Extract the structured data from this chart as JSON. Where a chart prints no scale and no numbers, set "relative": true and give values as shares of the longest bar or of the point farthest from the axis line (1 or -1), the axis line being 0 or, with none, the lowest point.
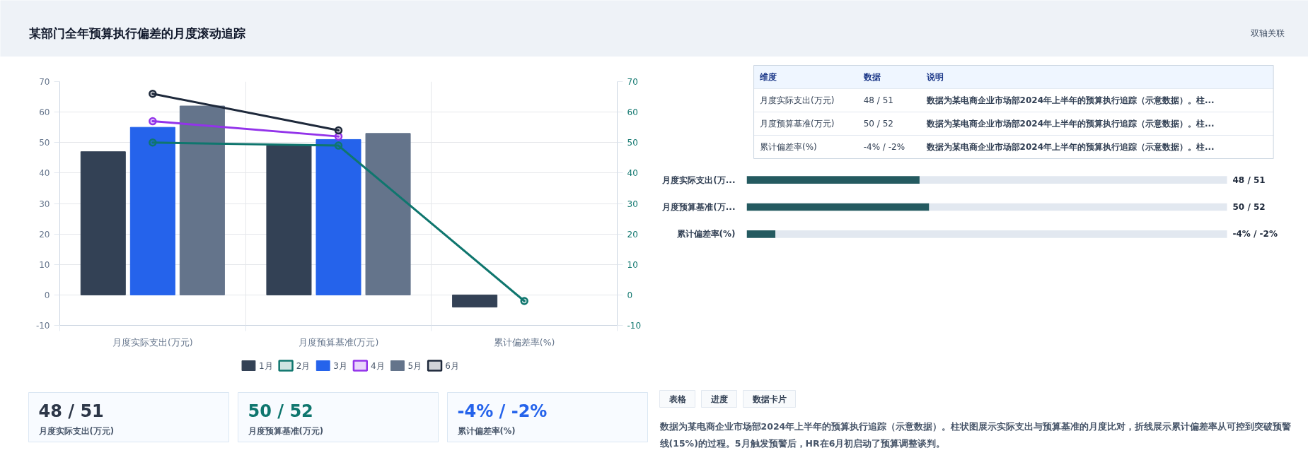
{
  "chart_data": [
    {
      "type": "bar",
      "title": "某部门全年预算执行偏差的月度滚动追踪",
      "annotations": [
        "双轴关联"
      ],
      "categories": [
        "月度实际支出(万元)",
        "月度预算基准(万元)",
        "累计偏差率(%)"
      ],
      "series": [
        {
          "name": "1月",
          "color": "#334155",
          "values": [
            47,
            49,
            -4
          ]
        },
        {
          "name": "2月",
          "type": "line",
          "axis": "y2",
          "color": "#0f766e",
          "values": [
            50,
            49,
            -2
          ]
        },
        {
          "name": "3月",
          "color": "#2563eb",
          "values": [
            55,
            51,
            null
          ]
        },
        {
          "name": "4月",
          "type": "line",
          "axis": "y2",
          "color": "#9333ea",
          "values": [
            57,
            52,
            null
          ]
        },
        {
          "name": "5月",
          "color": "#64748b",
          "values": [
            62,
            53,
            null
          ]
        },
        {
          "name": "6月",
          "type": "line",
          "axis": "y2",
          "color": "#1e293b",
          "values": [
            66,
            54,
            null
          ]
        }
      ],
      "ylim": [
        -10,
        70
      ],
      "yticks": [
        -10,
        0,
        10,
        20,
        30,
        40,
        50,
        60,
        70
      ],
      "y2lim": [
        -10,
        70
      ],
      "y2ticks": [
        -10,
        0,
        10,
        20,
        30,
        40,
        50,
        60,
        70
      ],
      "grid": true,
      "legend": "bottom",
      "marker": "circle",
      "line_style": "solid"
    },
    {
      "type": "other",
      "annotations": [
        "维度",
        "数据",
        "说明",
        "月度实际支出(万元)",
        "48 / 51",
        "数据为某电商企业市场部2024年上半年的预算执行追踪（示意数据）。柱...",
        "月度预算基准(万元)",
        "50 / 52",
        "数据为某电商企业市场部2024年上半年的预算执行追踪（示意数据）。柱...",
        "累计偏差率(%)",
        "-4% / -2%",
        "数据为某电商企业市场部2024年上半年的预算执行追踪（示意数据）。柱..."
      ]
    },
    {
      "type": "bar",
      "orientation": "horizontal",
      "stacked": true,
      "relative": true,
      "categories": [
        "月度实际支出(万...",
        "月度预算基准(万...",
        "累计偏差率(%)"
      ],
      "series": [
        {
          "color": "#245a60",
          "values": [
            0.36,
            0.38,
            0.06
          ]
        },
        {
          "color": "#e2e8f0",
          "values": [
            0.64,
            0.62,
            0.94
          ]
        }
      ],
      "totals": [
        "48 / 51",
        "50 / 52",
        "-4% / -2%"
      ]
    },
    {
      "type": "other",
      "annotations": [
        "48 / 51",
        "月度实际支出(万元)",
        "50 / 52",
        "月度预算基准(万元)",
        "-4% / -2%",
        "累计偏差率(%)"
      ],
      "colors": [
        "#2d3748",
        "#0f766e",
        "#2563eb"
      ]
    },
    {
      "type": "other",
      "annotations": [
        "表格",
        "进度",
        "数据卡片",
        "数据为某电商企业市场部2024年上半年的预算执行追踪（示意数据）。柱状图展示实际支出与预算基准的月度比对，折线展示累计偏差率从可控到突破预警线(15%)的过程。5月触发预警后，HR在6月初启动了预算调整谈判。"
      ]
    }
  ]
}
